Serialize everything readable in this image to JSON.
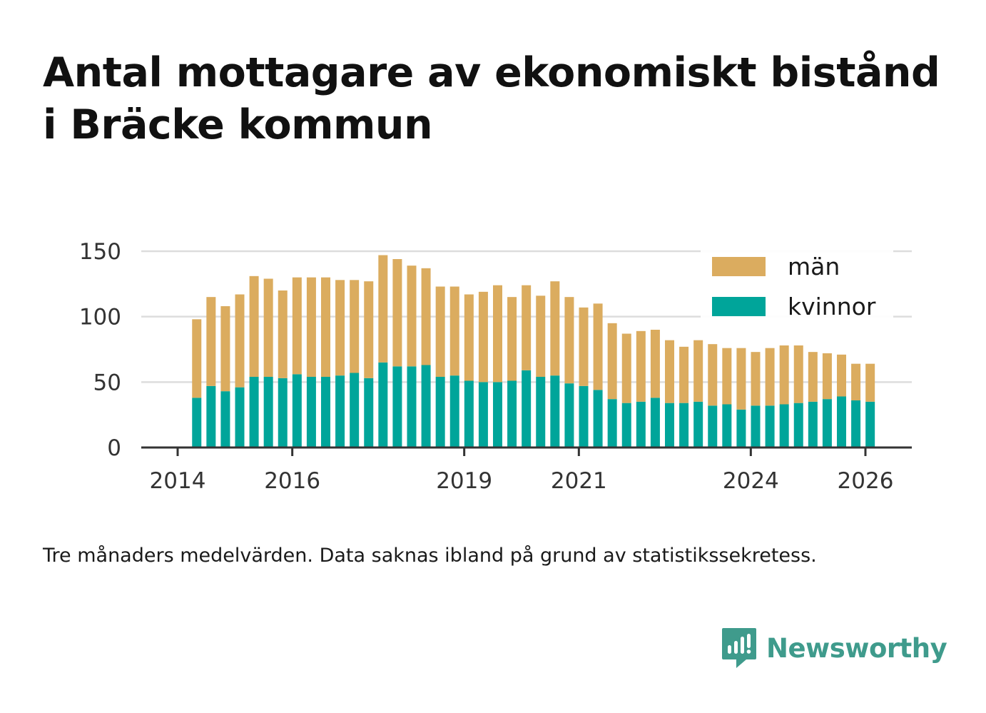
{
  "header": {
    "title": "Antal mottagare av ekonomiskt bistånd i Bräcke kommun"
  },
  "footnote": "Tre månaders medelvärden. Data saknas ibland på grund av statistikssekretess.",
  "brand": {
    "name": "Newsworthy",
    "icon": "newsworthy-logo-icon",
    "color": "#3f9b8c"
  },
  "chart_data": {
    "type": "bar",
    "stacked": true,
    "title": "Antal mottagare av ekonomiskt bistånd i Bräcke kommun",
    "xlabel": "",
    "ylabel": "",
    "ylim": [
      0,
      150
    ],
    "yticks": [
      0,
      50,
      100,
      150
    ],
    "grid": true,
    "legend_position": "top-right",
    "x_axis": {
      "start": 2014.0,
      "end": 2026.3,
      "ticks": [
        {
          "value": 2014.0,
          "label": "2014"
        },
        {
          "value": 2016.0,
          "label": "2016"
        },
        {
          "value": 2019.0,
          "label": "2019"
        },
        {
          "value": 2021.0,
          "label": "2021"
        },
        {
          "value": 2024.0,
          "label": "2024"
        },
        {
          "value": 2026.0,
          "label": "2026"
        }
      ]
    },
    "periods": [
      2014.333,
      2014.583,
      2014.833,
      2015.083,
      2015.333,
      2015.583,
      2015.833,
      2016.083,
      2016.333,
      2016.583,
      2016.833,
      2017.083,
      2017.333,
      2017.583,
      2017.833,
      2018.083,
      2018.333,
      2018.583,
      2018.833,
      2019.083,
      2019.333,
      2019.583,
      2019.833,
      2020.083,
      2020.333,
      2020.583,
      2020.833,
      2021.083,
      2021.333,
      2021.583,
      2021.833,
      2022.083,
      2022.333,
      2022.583,
      2022.833,
      2023.083,
      2023.333,
      2023.583,
      2023.833,
      2024.083,
      2024.333,
      2024.583,
      2024.833,
      2025.083,
      2025.333,
      2025.583,
      2025.833,
      2026.083
    ],
    "series": [
      {
        "name": "kvinnor",
        "color": "#00a59a",
        "values": [
          38,
          47,
          43,
          46,
          54,
          54,
          53,
          56,
          54,
          54,
          55,
          57,
          53,
          65,
          62,
          62,
          63,
          54,
          55,
          51,
          50,
          50,
          51,
          59,
          54,
          55,
          49,
          47,
          44,
          37,
          34,
          35,
          38,
          34,
          34,
          35,
          32,
          33,
          29,
          32,
          32,
          33,
          34,
          35,
          37,
          39,
          36,
          35
        ]
      },
      {
        "name": "män",
        "color": "#dbac5f",
        "values": [
          60,
          68,
          65,
          71,
          77,
          75,
          67,
          74,
          76,
          76,
          73,
          71,
          74,
          82,
          82,
          77,
          74,
          69,
          68,
          66,
          69,
          74,
          64,
          65,
          62,
          72,
          66,
          60,
          66,
          58,
          53,
          54,
          52,
          48,
          43,
          47,
          47,
          43,
          47,
          41,
          44,
          45,
          44,
          38,
          35,
          32,
          28,
          29
        ]
      }
    ]
  }
}
